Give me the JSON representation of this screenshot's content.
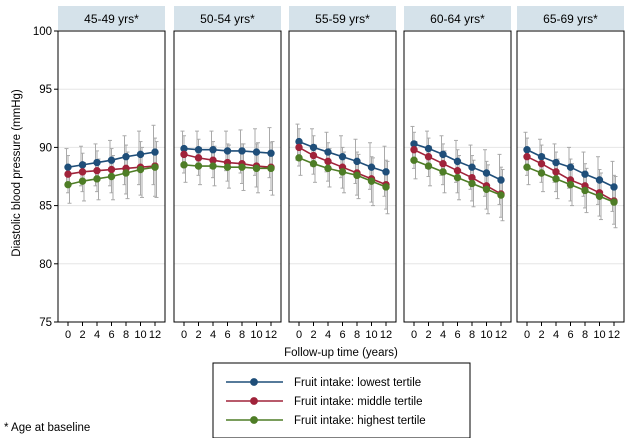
{
  "chart_data": {
    "type": "line",
    "ylabel": "Diastolic blood pressure (mmHg)",
    "xlabel": "Follow-up time (years)",
    "ylim": [
      75,
      100
    ],
    "yticks": [
      75,
      80,
      85,
      90,
      95,
      100
    ],
    "x": [
      0,
      2,
      4,
      6,
      8,
      10,
      12
    ],
    "xtick_labels": [
      "0",
      "2",
      "4",
      "6",
      "8",
      "10",
      "12"
    ],
    "footnote": "* Age at baseline",
    "legend_position": "bottom-center",
    "colors": {
      "lowest": "#1f4e79",
      "middle": "#a0233a",
      "highest": "#4e7d26",
      "panel_header": "#d5e2ea",
      "error_bar": "#aaaaaa"
    },
    "legend": [
      {
        "key": "lowest",
        "label": "Fruit intake: lowest tertile"
      },
      {
        "key": "middle",
        "label": "Fruit intake: middle tertile"
      },
      {
        "key": "highest",
        "label": "Fruit intake: highest tertile"
      }
    ],
    "panels": [
      {
        "title": "45-49 yrs*",
        "series": [
          {
            "key": "lowest",
            "values": [
              88.3,
              88.5,
              88.7,
              88.9,
              89.2,
              89.4,
              89.6
            ],
            "lower": [
              86.7,
              86.7,
              86.7,
              86.7,
              86.8,
              86.8,
              86.8
            ],
            "upper": [
              89.9,
              90.1,
              90.3,
              90.6,
              91.0,
              91.4,
              91.9
            ]
          },
          {
            "key": "middle",
            "values": [
              87.7,
              87.9,
              88.0,
              88.1,
              88.2,
              88.3,
              88.4
            ],
            "lower": [
              86.1,
              86.2,
              86.2,
              86.1,
              86.0,
              85.9,
              85.8
            ],
            "upper": [
              89.3,
              89.5,
              89.7,
              89.9,
              90.2,
              90.5,
              90.8
            ]
          },
          {
            "key": "highest",
            "values": [
              86.8,
              87.1,
              87.3,
              87.5,
              87.8,
              88.1,
              88.3
            ],
            "lower": [
              85.2,
              85.4,
              85.5,
              85.5,
              85.6,
              85.7,
              85.7
            ],
            "upper": [
              88.4,
              88.7,
              89.0,
              89.3,
              89.6,
              90.0,
              90.5
            ]
          }
        ]
      },
      {
        "title": "50-54 yrs*",
        "series": [
          {
            "key": "lowest",
            "values": [
              89.9,
              89.8,
              89.8,
              89.7,
              89.7,
              89.6,
              89.5
            ],
            "lower": [
              88.4,
              88.3,
              88.2,
              88.0,
              87.8,
              87.6,
              87.4
            ],
            "upper": [
              91.4,
              91.4,
              91.4,
              91.4,
              91.5,
              91.6,
              91.7
            ]
          },
          {
            "key": "middle",
            "values": [
              89.4,
              89.1,
              88.9,
              88.7,
              88.6,
              88.4,
              88.3
            ],
            "lower": [
              87.8,
              87.6,
              87.4,
              87.1,
              86.9,
              86.6,
              86.3
            ],
            "upper": [
              91.0,
              90.7,
              90.5,
              90.3,
              90.3,
              90.3,
              90.4
            ]
          },
          {
            "key": "highest",
            "values": [
              88.5,
              88.4,
              88.4,
              88.3,
              88.3,
              88.2,
              88.2
            ],
            "lower": [
              87.0,
              86.8,
              86.7,
              86.5,
              86.3,
              86.1,
              85.9
            ],
            "upper": [
              90.0,
              90.0,
              90.1,
              90.2,
              90.3,
              90.4,
              90.5
            ]
          }
        ]
      },
      {
        "title": "55-59 yrs*",
        "series": [
          {
            "key": "lowest",
            "values": [
              90.5,
              90.0,
              89.6,
              89.2,
              88.8,
              88.3,
              87.9
            ],
            "lower": [
              88.9,
              88.4,
              87.9,
              87.4,
              86.9,
              86.4,
              85.8
            ],
            "upper": [
              92.0,
              91.6,
              91.3,
              91.0,
              90.7,
              90.4,
              90.1
            ]
          },
          {
            "key": "middle",
            "values": [
              90.0,
              89.3,
              88.8,
              88.3,
              87.8,
              87.3,
              86.8
            ],
            "lower": [
              88.4,
              87.7,
              87.1,
              86.5,
              85.9,
              85.3,
              84.7
            ],
            "upper": [
              91.6,
              91.0,
              90.4,
              90.0,
              89.6,
              89.2,
              88.9
            ]
          },
          {
            "key": "highest",
            "values": [
              89.1,
              88.6,
              88.2,
              87.9,
              87.6,
              87.1,
              86.6
            ],
            "lower": [
              87.6,
              87.0,
              86.6,
              86.1,
              85.6,
              85.0,
              84.3
            ],
            "upper": [
              90.6,
              90.2,
              89.9,
              89.6,
              89.4,
              89.1,
              88.8
            ]
          }
        ]
      },
      {
        "title": "60-64 yrs*",
        "series": [
          {
            "key": "lowest",
            "values": [
              90.3,
              89.9,
              89.4,
              88.8,
              88.3,
              87.8,
              87.2
            ],
            "lower": [
              88.8,
              88.2,
              87.6,
              87.0,
              86.4,
              85.8,
              85.1
            ],
            "upper": [
              91.8,
              91.4,
              91.0,
              90.6,
              90.2,
              89.8,
              89.4
            ]
          },
          {
            "key": "middle",
            "values": [
              89.8,
              89.2,
              88.6,
              88.0,
              87.4,
              86.7,
              86.0
            ],
            "lower": [
              88.2,
              87.5,
              86.8,
              86.1,
              85.4,
              84.7,
              84.0
            ],
            "upper": [
              91.3,
              90.8,
              90.3,
              89.8,
              89.3,
              88.8,
              88.3
            ]
          },
          {
            "key": "highest",
            "values": [
              88.9,
              88.4,
              87.9,
              87.4,
              86.9,
              86.4,
              85.9
            ],
            "lower": [
              87.3,
              86.7,
              86.1,
              85.5,
              84.9,
              84.3,
              83.7
            ],
            "upper": [
              90.5,
              90.1,
              89.7,
              89.3,
              88.9,
              88.5,
              88.1
            ]
          }
        ]
      },
      {
        "title": "65-69 yrs*",
        "series": [
          {
            "key": "lowest",
            "values": [
              89.8,
              89.2,
              88.7,
              88.3,
              87.7,
              87.2,
              86.6
            ],
            "lower": [
              88.3,
              87.7,
              87.0,
              86.5,
              85.8,
              85.1,
              84.5
            ],
            "upper": [
              91.3,
              90.7,
              90.3,
              90.0,
              89.6,
              89.2,
              88.8
            ]
          },
          {
            "key": "middle",
            "values": [
              89.2,
              88.6,
              87.9,
              87.2,
              86.7,
              86.1,
              85.4
            ],
            "lower": [
              87.6,
              87.0,
              86.2,
              85.4,
              84.8,
              84.1,
              83.4
            ],
            "upper": [
              90.8,
              90.2,
              89.6,
              89.0,
              88.6,
              88.1,
              87.6
            ]
          },
          {
            "key": "highest",
            "values": [
              88.3,
              87.8,
              87.3,
              86.8,
              86.3,
              85.8,
              85.3
            ],
            "lower": [
              86.8,
              86.2,
              85.6,
              85.0,
              84.4,
              83.8,
              83.1
            ],
            "upper": [
              89.8,
              89.4,
              89.0,
              88.6,
              88.2,
              87.8,
              87.5
            ]
          }
        ]
      }
    ]
  }
}
